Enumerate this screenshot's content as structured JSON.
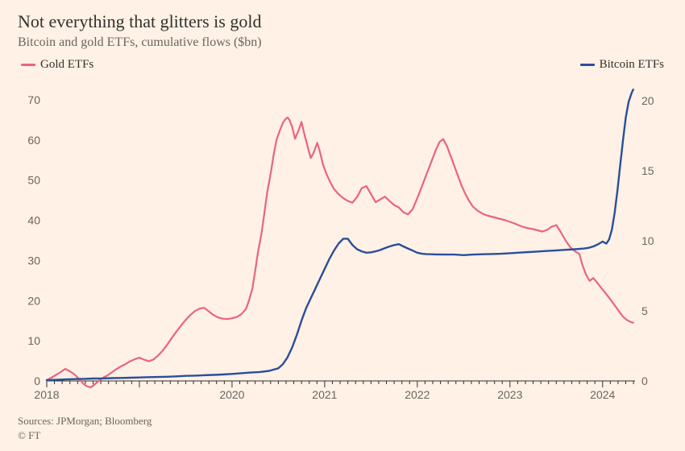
{
  "title": "Not everything that glitters is gold",
  "subtitle": "Bitcoin and gold ETFs, cumulative flows ($bn)",
  "sources": "Sources: JPMorgan; Bloomberg",
  "copyright": "© FT",
  "legend": {
    "gold": "Gold ETFs",
    "bitcoin": "Bitcoin ETFs"
  },
  "chart": {
    "type": "line-dual-axis",
    "background_color": "#fff1e5",
    "grid": false,
    "x": {
      "min": 2018,
      "max": 2024.35,
      "ticks_major": [
        2018,
        2020,
        2021,
        2022,
        2023,
        2024
      ],
      "minor_ticks_per_year": 12
    },
    "y_left": {
      "min": 0,
      "max": 75,
      "ticks": [
        0,
        10,
        20,
        30,
        40,
        50,
        60,
        70
      ]
    },
    "y_right": {
      "min": 0,
      "max": 21.5,
      "ticks": [
        0,
        5,
        10,
        15,
        20
      ]
    },
    "series": {
      "gold": {
        "color": "#e96480",
        "line_width": 2.2,
        "axis": "left",
        "data": [
          [
            2018.0,
            0.2
          ],
          [
            2018.05,
            0.8
          ],
          [
            2018.1,
            1.5
          ],
          [
            2018.15,
            2.2
          ],
          [
            2018.2,
            3.0
          ],
          [
            2018.25,
            2.4
          ],
          [
            2018.3,
            1.6
          ],
          [
            2018.35,
            0.5
          ],
          [
            2018.4,
            -0.8
          ],
          [
            2018.43,
            -1.3
          ],
          [
            2018.47,
            -1.6
          ],
          [
            2018.5,
            -1.2
          ],
          [
            2018.55,
            -0.2
          ],
          [
            2018.6,
            0.7
          ],
          [
            2018.65,
            1.3
          ],
          [
            2018.7,
            2.1
          ],
          [
            2018.75,
            2.9
          ],
          [
            2018.8,
            3.6
          ],
          [
            2018.85,
            4.2
          ],
          [
            2018.9,
            4.9
          ],
          [
            2018.95,
            5.4
          ],
          [
            2019.0,
            5.8
          ],
          [
            2019.05,
            5.3
          ],
          [
            2019.1,
            4.9
          ],
          [
            2019.15,
            5.3
          ],
          [
            2019.2,
            6.3
          ],
          [
            2019.25,
            7.5
          ],
          [
            2019.3,
            9.0
          ],
          [
            2019.35,
            10.7
          ],
          [
            2019.4,
            12.3
          ],
          [
            2019.45,
            13.8
          ],
          [
            2019.5,
            15.2
          ],
          [
            2019.55,
            16.4
          ],
          [
            2019.6,
            17.4
          ],
          [
            2019.65,
            18.0
          ],
          [
            2019.7,
            18.2
          ],
          [
            2019.75,
            17.3
          ],
          [
            2019.8,
            16.4
          ],
          [
            2019.85,
            15.8
          ],
          [
            2019.9,
            15.5
          ],
          [
            2019.95,
            15.4
          ],
          [
            2020.0,
            15.6
          ],
          [
            2020.05,
            15.9
          ],
          [
            2020.1,
            16.6
          ],
          [
            2020.15,
            17.9
          ],
          [
            2020.18,
            19.8
          ],
          [
            2020.22,
            23.0
          ],
          [
            2020.25,
            27.5
          ],
          [
            2020.28,
            32.0
          ],
          [
            2020.32,
            37.0
          ],
          [
            2020.35,
            42.0
          ],
          [
            2020.38,
            47.0
          ],
          [
            2020.42,
            52.0
          ],
          [
            2020.45,
            56.5
          ],
          [
            2020.48,
            60.0
          ],
          [
            2020.52,
            62.6
          ],
          [
            2020.55,
            64.3
          ],
          [
            2020.58,
            65.3
          ],
          [
            2020.6,
            65.6
          ],
          [
            2020.62,
            65.0
          ],
          [
            2020.65,
            63.2
          ],
          [
            2020.68,
            60.3
          ],
          [
            2020.72,
            62.5
          ],
          [
            2020.75,
            64.5
          ],
          [
            2020.78,
            61.5
          ],
          [
            2020.82,
            58.0
          ],
          [
            2020.85,
            55.5
          ],
          [
            2020.88,
            56.8
          ],
          [
            2020.92,
            59.3
          ],
          [
            2020.95,
            57.0
          ],
          [
            2020.98,
            54.0
          ],
          [
            2021.02,
            51.5
          ],
          [
            2021.06,
            49.5
          ],
          [
            2021.1,
            47.8
          ],
          [
            2021.15,
            46.5
          ],
          [
            2021.2,
            45.5
          ],
          [
            2021.25,
            44.8
          ],
          [
            2021.3,
            44.4
          ],
          [
            2021.35,
            45.8
          ],
          [
            2021.4,
            48.0
          ],
          [
            2021.45,
            48.5
          ],
          [
            2021.5,
            46.5
          ],
          [
            2021.55,
            44.5
          ],
          [
            2021.6,
            45.2
          ],
          [
            2021.65,
            45.9
          ],
          [
            2021.7,
            44.8
          ],
          [
            2021.75,
            43.8
          ],
          [
            2021.8,
            43.2
          ],
          [
            2021.85,
            42.0
          ],
          [
            2021.9,
            41.5
          ],
          [
            2021.95,
            42.8
          ],
          [
            2022.0,
            45.5
          ],
          [
            2022.05,
            48.5
          ],
          [
            2022.1,
            51.5
          ],
          [
            2022.15,
            54.5
          ],
          [
            2022.2,
            57.5
          ],
          [
            2022.24,
            59.5
          ],
          [
            2022.28,
            60.2
          ],
          [
            2022.32,
            58.5
          ],
          [
            2022.36,
            56.0
          ],
          [
            2022.4,
            53.5
          ],
          [
            2022.44,
            51.0
          ],
          [
            2022.48,
            48.5
          ],
          [
            2022.52,
            46.5
          ],
          [
            2022.56,
            44.8
          ],
          [
            2022.6,
            43.4
          ],
          [
            2022.65,
            42.4
          ],
          [
            2022.7,
            41.7
          ],
          [
            2022.75,
            41.2
          ],
          [
            2022.8,
            40.9
          ],
          [
            2022.85,
            40.6
          ],
          [
            2022.9,
            40.3
          ],
          [
            2022.95,
            40.0
          ],
          [
            2023.0,
            39.6
          ],
          [
            2023.05,
            39.2
          ],
          [
            2023.1,
            38.7
          ],
          [
            2023.15,
            38.3
          ],
          [
            2023.2,
            38.0
          ],
          [
            2023.25,
            37.8
          ],
          [
            2023.3,
            37.5
          ],
          [
            2023.35,
            37.2
          ],
          [
            2023.4,
            37.6
          ],
          [
            2023.45,
            38.4
          ],
          [
            2023.5,
            38.8
          ],
          [
            2023.55,
            37.0
          ],
          [
            2023.6,
            35.0
          ],
          [
            2023.65,
            33.3
          ],
          [
            2023.7,
            32.3
          ],
          [
            2023.75,
            31.6
          ],
          [
            2023.78,
            29.0
          ],
          [
            2023.82,
            26.5
          ],
          [
            2023.86,
            24.9
          ],
          [
            2023.9,
            25.6
          ],
          [
            2023.94,
            24.5
          ],
          [
            2023.98,
            23.3
          ],
          [
            2024.02,
            22.2
          ],
          [
            2024.06,
            21.0
          ],
          [
            2024.1,
            19.8
          ],
          [
            2024.14,
            18.5
          ],
          [
            2024.18,
            17.2
          ],
          [
            2024.22,
            16.0
          ],
          [
            2024.26,
            15.2
          ],
          [
            2024.3,
            14.7
          ],
          [
            2024.33,
            14.5
          ]
        ]
      },
      "bitcoin": {
        "color": "#2a4e9c",
        "line_width": 2.4,
        "axis": "right",
        "data": [
          [
            2018.0,
            0.05
          ],
          [
            2018.1,
            0.08
          ],
          [
            2018.2,
            0.11
          ],
          [
            2018.3,
            0.13
          ],
          [
            2018.4,
            0.15
          ],
          [
            2018.5,
            0.17
          ],
          [
            2018.6,
            0.18
          ],
          [
            2018.7,
            0.2
          ],
          [
            2018.8,
            0.21
          ],
          [
            2018.9,
            0.23
          ],
          [
            2019.0,
            0.25
          ],
          [
            2019.1,
            0.27
          ],
          [
            2019.2,
            0.28
          ],
          [
            2019.3,
            0.3
          ],
          [
            2019.4,
            0.33
          ],
          [
            2019.5,
            0.36
          ],
          [
            2019.6,
            0.38
          ],
          [
            2019.7,
            0.41
          ],
          [
            2019.8,
            0.43
          ],
          [
            2019.9,
            0.46
          ],
          [
            2020.0,
            0.5
          ],
          [
            2020.1,
            0.55
          ],
          [
            2020.2,
            0.6
          ],
          [
            2020.3,
            0.64
          ],
          [
            2020.4,
            0.72
          ],
          [
            2020.5,
            0.9
          ],
          [
            2020.55,
            1.2
          ],
          [
            2020.6,
            1.7
          ],
          [
            2020.65,
            2.4
          ],
          [
            2020.7,
            3.3
          ],
          [
            2020.75,
            4.3
          ],
          [
            2020.8,
            5.2
          ],
          [
            2020.85,
            5.9
          ],
          [
            2020.9,
            6.6
          ],
          [
            2020.95,
            7.3
          ],
          [
            2021.0,
            8.0
          ],
          [
            2021.05,
            8.7
          ],
          [
            2021.1,
            9.3
          ],
          [
            2021.15,
            9.8
          ],
          [
            2021.2,
            10.15
          ],
          [
            2021.25,
            10.15
          ],
          [
            2021.3,
            9.7
          ],
          [
            2021.35,
            9.4
          ],
          [
            2021.4,
            9.25
          ],
          [
            2021.45,
            9.15
          ],
          [
            2021.5,
            9.18
          ],
          [
            2021.55,
            9.25
          ],
          [
            2021.6,
            9.35
          ],
          [
            2021.65,
            9.48
          ],
          [
            2021.7,
            9.6
          ],
          [
            2021.75,
            9.7
          ],
          [
            2021.8,
            9.76
          ],
          [
            2021.85,
            9.6
          ],
          [
            2021.9,
            9.45
          ],
          [
            2021.95,
            9.3
          ],
          [
            2022.0,
            9.15
          ],
          [
            2022.05,
            9.08
          ],
          [
            2022.1,
            9.05
          ],
          [
            2022.15,
            9.04
          ],
          [
            2022.2,
            9.03
          ],
          [
            2022.3,
            9.02
          ],
          [
            2022.4,
            9.02
          ],
          [
            2022.5,
            8.98
          ],
          [
            2022.6,
            9.02
          ],
          [
            2022.7,
            9.04
          ],
          [
            2022.8,
            9.06
          ],
          [
            2022.9,
            9.08
          ],
          [
            2023.0,
            9.12
          ],
          [
            2023.1,
            9.16
          ],
          [
            2023.2,
            9.2
          ],
          [
            2023.3,
            9.24
          ],
          [
            2023.4,
            9.28
          ],
          [
            2023.5,
            9.32
          ],
          [
            2023.6,
            9.36
          ],
          [
            2023.7,
            9.4
          ],
          [
            2023.8,
            9.45
          ],
          [
            2023.85,
            9.5
          ],
          [
            2023.9,
            9.6
          ],
          [
            2023.95,
            9.75
          ],
          [
            2024.0,
            9.95
          ],
          [
            2024.04,
            9.8
          ],
          [
            2024.07,
            10.1
          ],
          [
            2024.1,
            10.8
          ],
          [
            2024.13,
            12.0
          ],
          [
            2024.16,
            13.6
          ],
          [
            2024.19,
            15.4
          ],
          [
            2024.22,
            17.2
          ],
          [
            2024.25,
            18.8
          ],
          [
            2024.28,
            19.9
          ],
          [
            2024.31,
            20.5
          ],
          [
            2024.33,
            20.8
          ]
        ]
      }
    }
  }
}
